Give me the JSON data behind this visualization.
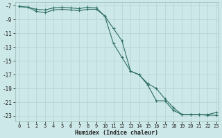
{
  "xlabel": "Humidex (Indice chaleur)",
  "bg_color": "#cde8e8",
  "grid_color": "#b8d4d4",
  "line_color": "#2d6e62",
  "xlim": [
    -0.5,
    23.3
  ],
  "ylim": [
    -23.8,
    -6.5
  ],
  "yticks": [
    -7,
    -9,
    -11,
    -13,
    -15,
    -17,
    -19,
    -21,
    -23
  ],
  "xticks": [
    0,
    1,
    2,
    3,
    4,
    5,
    6,
    7,
    8,
    9,
    10,
    11,
    12,
    13,
    14,
    15,
    16,
    17,
    18,
    19,
    20,
    21,
    22,
    23
  ],
  "line1_x": [
    0,
    1,
    2,
    3,
    4,
    5,
    6,
    7,
    8,
    9,
    10,
    11,
    12,
    13,
    14,
    15,
    16,
    17,
    18,
    19,
    20,
    21,
    22,
    23
  ],
  "line1_y": [
    -7.1,
    -7.2,
    -7.5,
    -7.6,
    -7.3,
    -7.2,
    -7.3,
    -7.4,
    -7.2,
    -7.3,
    -8.5,
    -10.3,
    -12.1,
    -16.5,
    -17.0,
    -18.3,
    -19.0,
    -20.5,
    -21.8,
    -22.8,
    -22.8,
    -22.8,
    -22.8,
    -22.5
  ],
  "line2_x": [
    0,
    1,
    2,
    3,
    4,
    5,
    6,
    7,
    8,
    9,
    10,
    11,
    12,
    13,
    14,
    15,
    16,
    17,
    18,
    19,
    20,
    21,
    22,
    23
  ],
  "line2_y": [
    -7.1,
    -7.2,
    -7.8,
    -8.0,
    -7.6,
    -7.5,
    -7.6,
    -7.7,
    -7.5,
    -7.5,
    -8.5,
    -12.5,
    -14.5,
    -16.5,
    -17.0,
    -18.5,
    -20.8,
    -20.8,
    -22.2,
    -22.8,
    -22.8,
    -22.8,
    -22.9,
    -22.9
  ],
  "xlabel_fontsize": 6.0,
  "tick_fontsize": 5.0,
  "linewidth": 0.8,
  "markersize": 3.0
}
